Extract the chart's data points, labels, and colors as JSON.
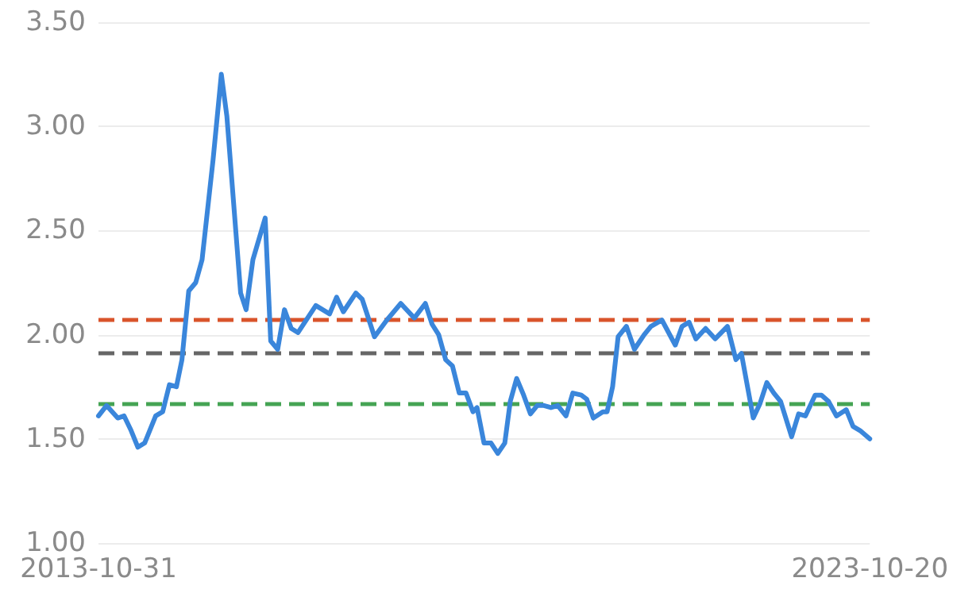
{
  "chart_data": {
    "type": "line",
    "x": [
      "2013-10-31",
      "2013-12-08",
      "2014-01-30",
      "2014-03-01",
      "2014-04-03",
      "2014-05-05",
      "2014-06-06",
      "2014-07-28",
      "2014-08-30",
      "2014-10-01",
      "2014-11-03",
      "2014-11-29",
      "2014-12-31",
      "2015-02-02",
      "2015-03-04",
      "2015-04-25",
      "2015-06-03",
      "2015-06-29",
      "2015-09-02",
      "2015-09-28",
      "2015-10-30",
      "2015-12-27",
      "2016-01-22",
      "2016-02-24",
      "2016-03-27",
      "2016-04-28",
      "2016-05-30",
      "2016-07-01",
      "2016-08-22",
      "2016-10-26",
      "2016-11-28",
      "2016-12-30",
      "2017-02-27",
      "2017-03-29",
      "2017-05-26",
      "2017-07-23",
      "2017-09-27",
      "2017-11-30",
      "2018-01-21",
      "2018-02-22",
      "2018-03-25",
      "2018-04-27",
      "2018-05-29",
      "2018-06-30",
      "2018-08-01",
      "2018-09-03",
      "2018-09-22",
      "2018-10-25",
      "2018-11-27",
      "2018-12-29",
      "2019-01-31",
      "2019-02-26",
      "2019-03-28",
      "2019-04-30",
      "2019-06-01",
      "2019-07-03",
      "2019-08-04",
      "2019-09-06",
      "2019-10-08",
      "2019-11-16",
      "2019-12-18",
      "2020-01-27",
      "2020-02-22",
      "2020-03-24",
      "2020-05-08",
      "2020-05-28",
      "2020-06-23",
      "2020-07-19",
      "2020-08-27",
      "2020-10-04",
      "2020-11-19",
      "2020-12-21",
      "2021-02-11",
      "2021-04-15",
      "2021-05-17",
      "2021-06-19",
      "2021-07-21",
      "2021-09-05",
      "2021-10-20",
      "2021-12-17",
      "2022-01-26",
      "2022-02-21",
      "2022-04-18",
      "2022-05-20",
      "2022-06-21",
      "2022-07-24",
      "2022-08-25",
      "2022-10-16",
      "2022-11-18",
      "2022-12-20",
      "2023-02-04",
      "2023-03-06",
      "2023-04-08",
      "2023-05-16",
      "2023-07-01",
      "2023-08-02",
      "2023-09-04",
      "2023-10-20"
    ],
    "series": [
      {
        "color": "#3a86db",
        "values": [
          1.61,
          1.66,
          1.6,
          1.61,
          1.54,
          1.46,
          1.48,
          1.61,
          1.63,
          1.76,
          1.75,
          1.88,
          2.21,
          2.25,
          2.36,
          2.84,
          3.25,
          3.05,
          2.2,
          2.12,
          2.36,
          2.56,
          1.97,
          1.93,
          2.12,
          2.03,
          2.01,
          2.06,
          2.14,
          2.1,
          2.18,
          2.11,
          2.2,
          2.17,
          1.99,
          2.07,
          2.15,
          2.08,
          2.15,
          2.05,
          2.0,
          1.88,
          1.85,
          1.72,
          1.72,
          1.63,
          1.65,
          1.48,
          1.48,
          1.43,
          1.48,
          1.68,
          1.79,
          1.71,
          1.62,
          1.66,
          1.66,
          1.65,
          1.66,
          1.61,
          1.72,
          1.71,
          1.69,
          1.6,
          1.63,
          1.63,
          1.75,
          1.99,
          2.04,
          1.93,
          2.0,
          2.04,
          2.07,
          1.95,
          2.04,
          2.06,
          1.98,
          2.03,
          1.98,
          2.04,
          1.88,
          1.91,
          1.6,
          1.67,
          1.77,
          1.72,
          1.68,
          1.51,
          1.62,
          1.61,
          1.71,
          1.71,
          1.68,
          1.61,
          1.64,
          1.56,
          1.54,
          1.5
        ]
      }
    ],
    "xlim": [
      "2013-10-31",
      "2023-10-20"
    ],
    "xticks": [
      "2013-10-31",
      "2023-10-20"
    ],
    "ylim": [
      1,
      3.5
    ],
    "yticks": [
      {
        "value": 1,
        "label": "1.00"
      },
      {
        "value": 1.5,
        "label": "1.50"
      },
      {
        "value": 2,
        "label": "2.00"
      },
      {
        "value": 2.5,
        "label": "2.50"
      },
      {
        "value": 3,
        "label": "3.00"
      },
      {
        "value": 3.5,
        "label": "3.50"
      }
    ],
    "grid": "y",
    "marker": "none",
    "line_style": "solid",
    "ref_lines": [
      {
        "axis": "y",
        "value": 2.07,
        "color": "#d9542b",
        "line_style": "dashed"
      },
      {
        "axis": "y",
        "value": 1.91,
        "color": "#666666",
        "line_style": "dashed"
      },
      {
        "axis": "y",
        "value": 1.67,
        "color": "#45a454",
        "line_style": "dashed"
      }
    ]
  }
}
